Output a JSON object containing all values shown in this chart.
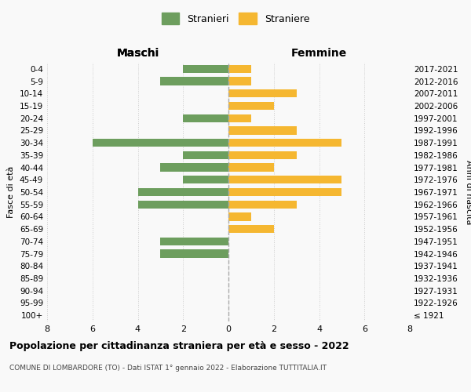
{
  "age_groups": [
    "100+",
    "95-99",
    "90-94",
    "85-89",
    "80-84",
    "75-79",
    "70-74",
    "65-69",
    "60-64",
    "55-59",
    "50-54",
    "45-49",
    "40-44",
    "35-39",
    "30-34",
    "25-29",
    "20-24",
    "15-19",
    "10-14",
    "5-9",
    "0-4"
  ],
  "birth_years": [
    "≤ 1921",
    "1922-1926",
    "1927-1931",
    "1932-1936",
    "1937-1941",
    "1942-1946",
    "1947-1951",
    "1952-1956",
    "1957-1961",
    "1962-1966",
    "1967-1971",
    "1972-1976",
    "1977-1981",
    "1982-1986",
    "1987-1991",
    "1992-1996",
    "1997-2001",
    "2002-2006",
    "2007-2011",
    "2012-2016",
    "2017-2021"
  ],
  "maschi": [
    0,
    0,
    0,
    0,
    0,
    3,
    3,
    0,
    0,
    4,
    4,
    2,
    3,
    2,
    6,
    0,
    2,
    0,
    0,
    3,
    2
  ],
  "femmine": [
    0,
    0,
    0,
    0,
    0,
    0,
    0,
    2,
    1,
    3,
    5,
    5,
    2,
    3,
    5,
    3,
    1,
    2,
    3,
    1,
    1
  ],
  "color_maschi": "#6d9e5e",
  "color_femmine": "#f5b731",
  "title": "Popolazione per cittadinanza straniera per età e sesso - 2022",
  "subtitle": "COMUNE DI LOMBARDORE (TO) - Dati ISTAT 1° gennaio 2022 - Elaborazione TUTTITALIA.IT",
  "xlabel_left": "Maschi",
  "xlabel_right": "Femmine",
  "ylabel_left": "Fasce di età",
  "ylabel_right": "Anni di nascita",
  "legend_maschi": "Stranieri",
  "legend_femmine": "Straniere",
  "xlim": 8,
  "background_color": "#f9f9f9",
  "grid_color": "#cccccc"
}
